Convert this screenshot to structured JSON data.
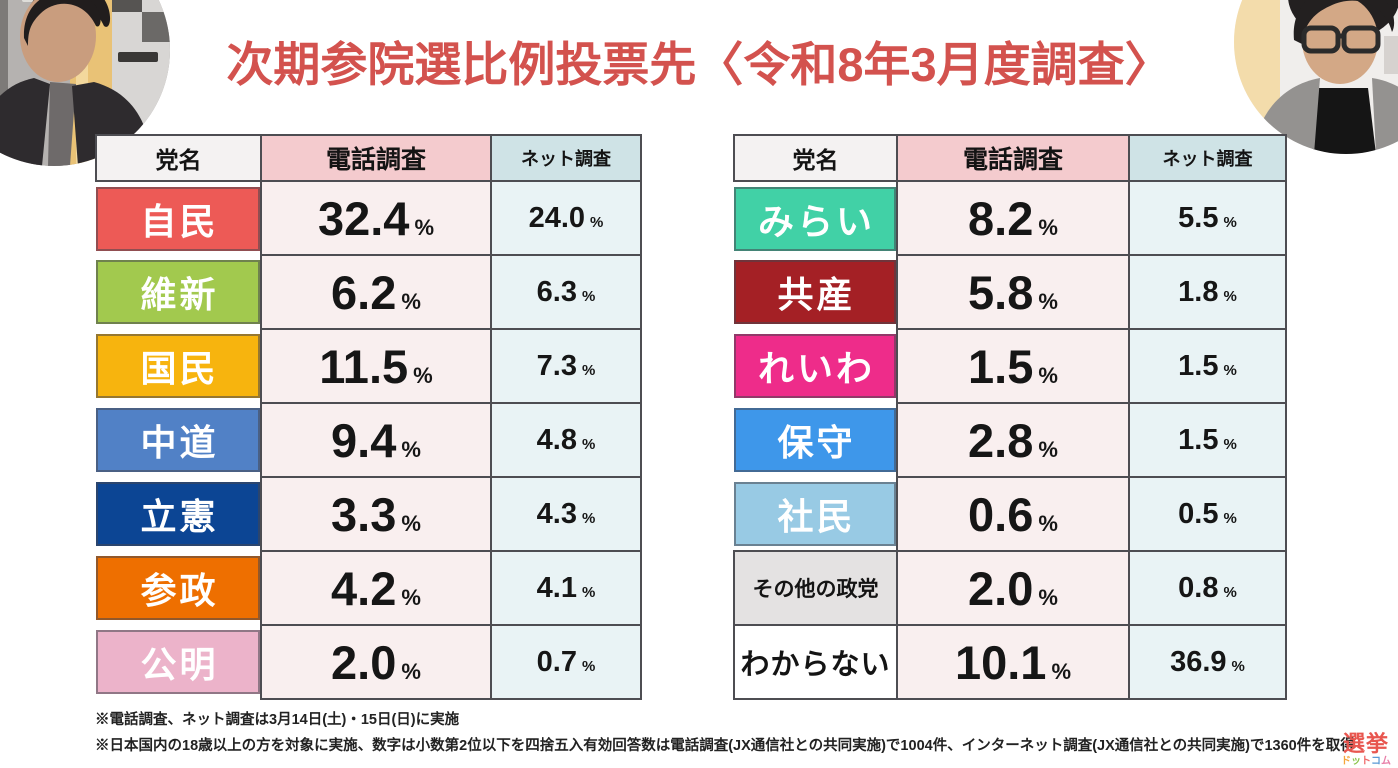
{
  "title": "次期参院選比例投票先〈令和8年3月度調査〉",
  "unit": "%",
  "colors": {
    "title_red": "#d3524e",
    "header_party_bg": "#f4f2f2",
    "header_phone_bg": "#f4cbce",
    "header_net_bg": "#cfe3e6",
    "phone_cell_bg": "#f9efef",
    "net_cell_bg": "#e9f3f5",
    "table_border": "#4d4d52"
  },
  "tables": [
    {
      "headers": [
        "党名",
        "電話調査",
        "ネット調査"
      ],
      "rows": [
        {
          "party": "自民",
          "color": "#ed5a56",
          "text_color": "#ffffff",
          "style": "chip",
          "label_size": "lg",
          "phone": "32.4",
          "net": "24.0"
        },
        {
          "party": "維新",
          "color": "#a2c94e",
          "text_color": "#ffffff",
          "style": "chip",
          "label_size": "lg",
          "phone": "6.2",
          "net": "6.3"
        },
        {
          "party": "国民",
          "color": "#f7b40e",
          "text_color": "#ffffff",
          "style": "chip",
          "label_size": "lg",
          "phone": "11.5",
          "net": "7.3"
        },
        {
          "party": "中道",
          "color": "#5181c6",
          "text_color": "#ffffff",
          "style": "chip",
          "label_size": "lg",
          "phone": "9.4",
          "net": "4.8"
        },
        {
          "party": "立憲",
          "color": "#0c4594",
          "text_color": "#ffffff",
          "style": "chip",
          "label_size": "lg",
          "phone": "3.3",
          "net": "4.3"
        },
        {
          "party": "参政",
          "color": "#ee6f00",
          "text_color": "#ffffff",
          "style": "chip",
          "label_size": "lg",
          "phone": "4.2",
          "net": "4.1"
        },
        {
          "party": "公明",
          "color": "#ecb3ca",
          "text_color": "#ffffff",
          "style": "chip",
          "label_size": "lg",
          "phone": "2.0",
          "net": "0.7"
        }
      ]
    },
    {
      "headers": [
        "党名",
        "電話調査",
        "ネット調査"
      ],
      "rows": [
        {
          "party": "みらい",
          "color": "#41d1a6",
          "text_color": "#ffffff",
          "style": "chip",
          "label_size": "lg",
          "phone": "8.2",
          "net": "5.5"
        },
        {
          "party": "共産",
          "color": "#a42025",
          "text_color": "#ffffff",
          "style": "chip",
          "label_size": "lg",
          "phone": "5.8",
          "net": "1.8"
        },
        {
          "party": "れいわ",
          "color": "#ee2c8a",
          "text_color": "#ffffff",
          "style": "chip",
          "label_size": "lg",
          "phone": "1.5",
          "net": "1.5"
        },
        {
          "party": "保守",
          "color": "#3e97ea",
          "text_color": "#ffffff",
          "style": "chip",
          "label_size": "lg",
          "phone": "2.8",
          "net": "1.5"
        },
        {
          "party": "社民",
          "color": "#98cae4",
          "text_color": "#ffffff",
          "style": "chip",
          "label_size": "lg",
          "phone": "0.6",
          "net": "0.5"
        },
        {
          "party": "その他の政党",
          "color": "#e4e2e2",
          "text_color": "#141414",
          "style": "plain",
          "label_size": "sm",
          "phone": "2.0",
          "net": "0.8"
        },
        {
          "party": "わからない",
          "color": "#ffffff",
          "text_color": "#141414",
          "style": "plain",
          "label_size": "md",
          "phone": "10.1",
          "net": "36.9"
        }
      ]
    }
  ],
  "footnotes": [
    "※電話調査、ネット調査は3月14日(土)・15日(日)に実施",
    "※日本国内の18歳以上の方を対象に実施、数字は小数第2位以下を四捨五入有効回答数は電話調査(JX通信社との共同実施)で1004件、インターネット調査(JX通信社との共同実施)で1360件を取得"
  ],
  "logo": {
    "line1": "選挙",
    "line2": "ドットコム",
    "line2_colors": [
      "#f5a63b",
      "#8bc34a",
      "#ef6a6a",
      "#5b9bd5",
      "#e87fa8"
    ]
  },
  "chart_data": [
    {
      "type": "table",
      "title": "次期参院選比例投票先〈令和8年3月度調査〉",
      "columns": [
        "党名",
        "電話調査",
        "ネット調査"
      ],
      "unit": "%",
      "rows": [
        [
          "自民",
          32.4,
          24.0
        ],
        [
          "維新",
          6.2,
          6.3
        ],
        [
          "国民",
          11.5,
          7.3
        ],
        [
          "中道",
          9.4,
          4.8
        ],
        [
          "立憲",
          3.3,
          4.3
        ],
        [
          "参政",
          4.2,
          4.1
        ],
        [
          "公明",
          2.0,
          0.7
        ]
      ]
    },
    {
      "type": "table",
      "title": "次期参院選比例投票先〈令和8年3月度調査〉",
      "columns": [
        "党名",
        "電話調査",
        "ネット調査"
      ],
      "unit": "%",
      "rows": [
        [
          "みらい",
          8.2,
          5.5
        ],
        [
          "共産",
          5.8,
          1.8
        ],
        [
          "れいわ",
          1.5,
          1.5
        ],
        [
          "保守",
          2.8,
          1.5
        ],
        [
          "社民",
          0.6,
          0.5
        ],
        [
          "その他の政党",
          2.0,
          0.8
        ],
        [
          "わからない",
          10.1,
          36.9
        ]
      ]
    }
  ]
}
